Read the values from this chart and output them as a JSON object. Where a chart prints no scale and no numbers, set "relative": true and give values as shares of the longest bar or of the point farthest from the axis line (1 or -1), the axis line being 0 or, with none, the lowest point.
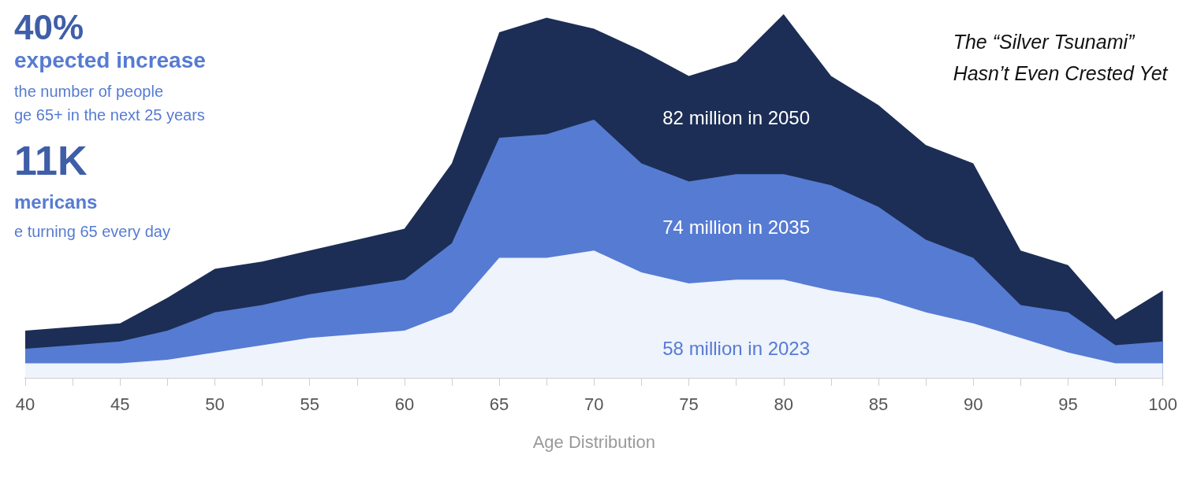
{
  "chart_data": {
    "type": "area",
    "relative": true,
    "title": "The “Silver Tsunami”\nHasn’t Even Crested Yet",
    "xlabel": "Age Distribution",
    "x": [
      40,
      42.5,
      45,
      47.5,
      50,
      52.5,
      55,
      57.5,
      60,
      62.5,
      65,
      67.5,
      70,
      72.5,
      75,
      77.5,
      80,
      82.5,
      85,
      87.5,
      90,
      92.5,
      95,
      97.5,
      100
    ],
    "xlim": [
      40,
      100
    ],
    "xticks": [
      40,
      {
        "value": 42.5,
        "label": null
      },
      45,
      {
        "value": 47.5,
        "label": null
      },
      50,
      {
        "value": 52.5,
        "label": null
      },
      55,
      {
        "value": 57.5,
        "label": null
      },
      60,
      {
        "value": 62.5,
        "label": null
      },
      65,
      {
        "value": 67.5,
        "label": null
      },
      70,
      {
        "value": 72.5,
        "label": null
      },
      75,
      {
        "value": 77.5,
        "label": null
      },
      80,
      {
        "value": 82.5,
        "label": null
      },
      85,
      {
        "value": 87.5,
        "label": null
      },
      90,
      {
        "value": 92.5,
        "label": null
      },
      95,
      {
        "value": 97.5,
        "label": null
      },
      100
    ],
    "series": [
      {
        "name": "82 million in 2050",
        "color": "#1c2e55",
        "values": [
          0.13,
          0.14,
          0.15,
          0.22,
          0.3,
          0.32,
          0.35,
          0.38,
          0.41,
          0.59,
          0.95,
          0.99,
          0.96,
          0.9,
          0.83,
          0.87,
          1,
          0.83,
          0.75,
          0.64,
          0.59,
          0.35,
          0.31,
          0.16,
          0.24
        ]
      },
      {
        "name": "74 million in 2035",
        "color": "#567bd2",
        "values": [
          0.08,
          0.09,
          0.1,
          0.13,
          0.18,
          0.2,
          0.23,
          0.25,
          0.27,
          0.37,
          0.66,
          0.67,
          0.71,
          0.59,
          0.54,
          0.56,
          0.56,
          0.53,
          0.47,
          0.38,
          0.33,
          0.2,
          0.18,
          0.09,
          0.1
        ]
      },
      {
        "name": "58 million in 2023",
        "color": "#eef3fc",
        "values": [
          0.04,
          0.04,
          0.04,
          0.05,
          0.07,
          0.09,
          0.11,
          0.12,
          0.13,
          0.18,
          0.33,
          0.33,
          0.35,
          0.29,
          0.26,
          0.27,
          0.27,
          0.24,
          0.22,
          0.18,
          0.15,
          0.11,
          0.07,
          0.04,
          0.04
        ]
      }
    ],
    "annotations": [
      "40%",
      "expected increase",
      "the number of people",
      "ge 65+ in the next 25 years",
      "11K",
      "mericans",
      "e turning 65 every day"
    ]
  }
}
